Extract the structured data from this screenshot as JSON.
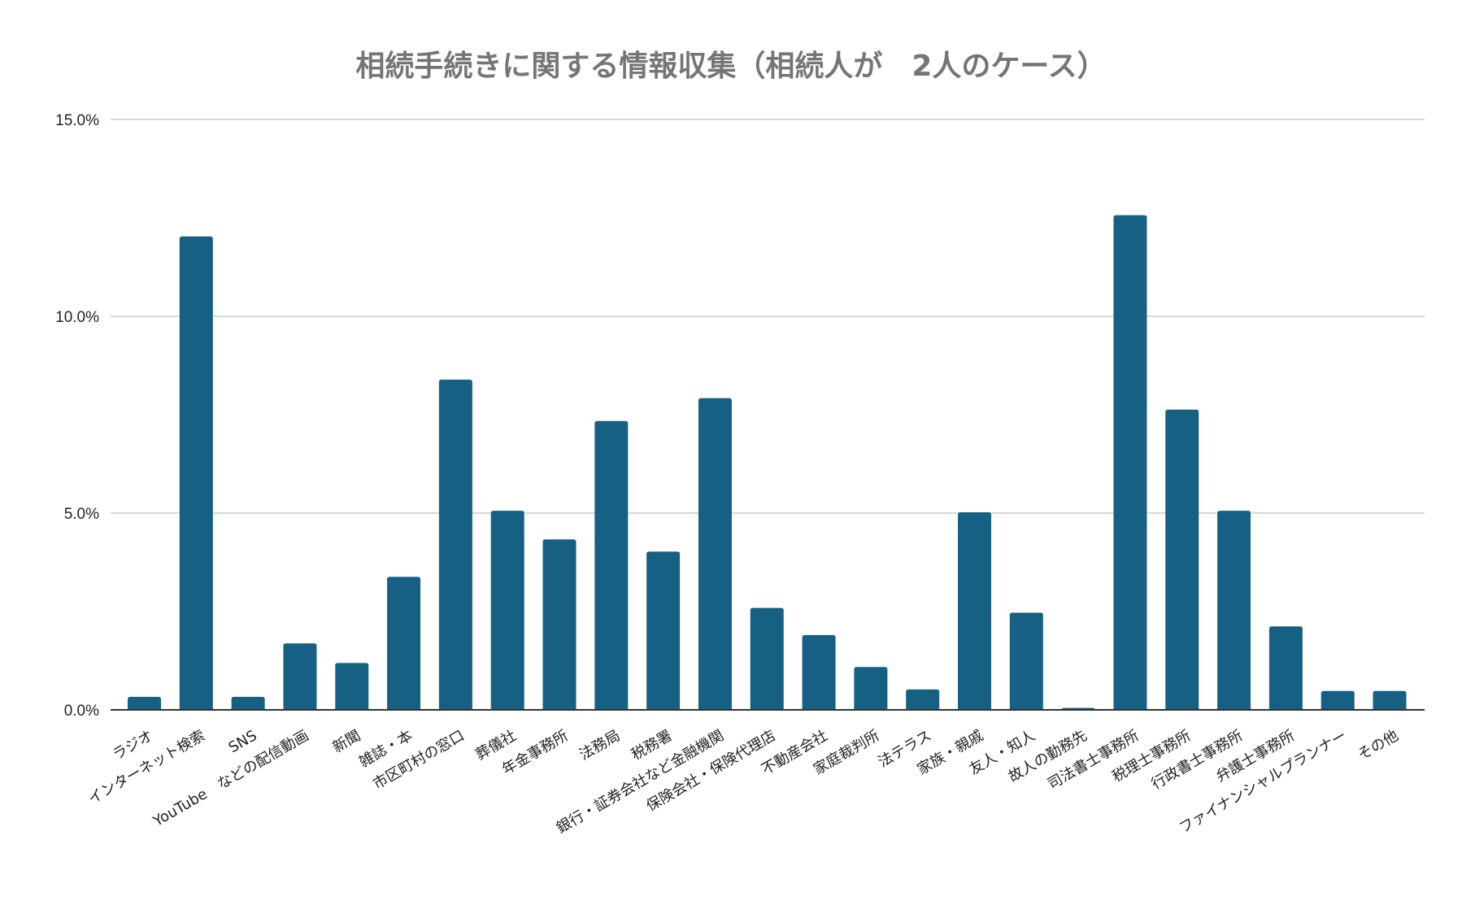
{
  "chart_data": {
    "type": "bar",
    "title": "相続手続きに関する情報収集（相続人が　2人のケース）",
    "xlabel": "",
    "ylabel": "",
    "ylim": [
      0,
      15
    ],
    "yticks": [
      "0.0%",
      "5.0%",
      "10.0%",
      "15.0%"
    ],
    "ytick_values": [
      0,
      5,
      10,
      15
    ],
    "grid": true,
    "bar_color": "#166084",
    "categories": [
      "ラジオ",
      "インターネット検索",
      "SNS",
      "YouTube　などの配信動画",
      "新聞",
      "雑誌・本",
      "市区町村の窓口",
      "葬儀社",
      "年金事務所",
      "法務局",
      "税務署",
      "銀行・証券会社など金融機関",
      "保険会社・保険代理店",
      "不動産会社",
      "家庭裁判所",
      "法テラス",
      "家族・親戚",
      "友人・知人",
      "故人の勤務先",
      "司法書士事務所",
      "税理士事務所",
      "行政書士事務所",
      "弁護士事務所",
      "ファイナンシャルプランナー",
      "その他"
    ],
    "values": [
      0.33,
      12.03,
      0.33,
      1.69,
      1.19,
      3.38,
      8.39,
      5.06,
      4.33,
      7.34,
      4.02,
      7.92,
      2.59,
      1.9,
      1.09,
      0.52,
      5.02,
      2.47,
      0.05,
      12.57,
      7.63,
      5.06,
      2.12,
      0.48,
      0.48
    ]
  }
}
